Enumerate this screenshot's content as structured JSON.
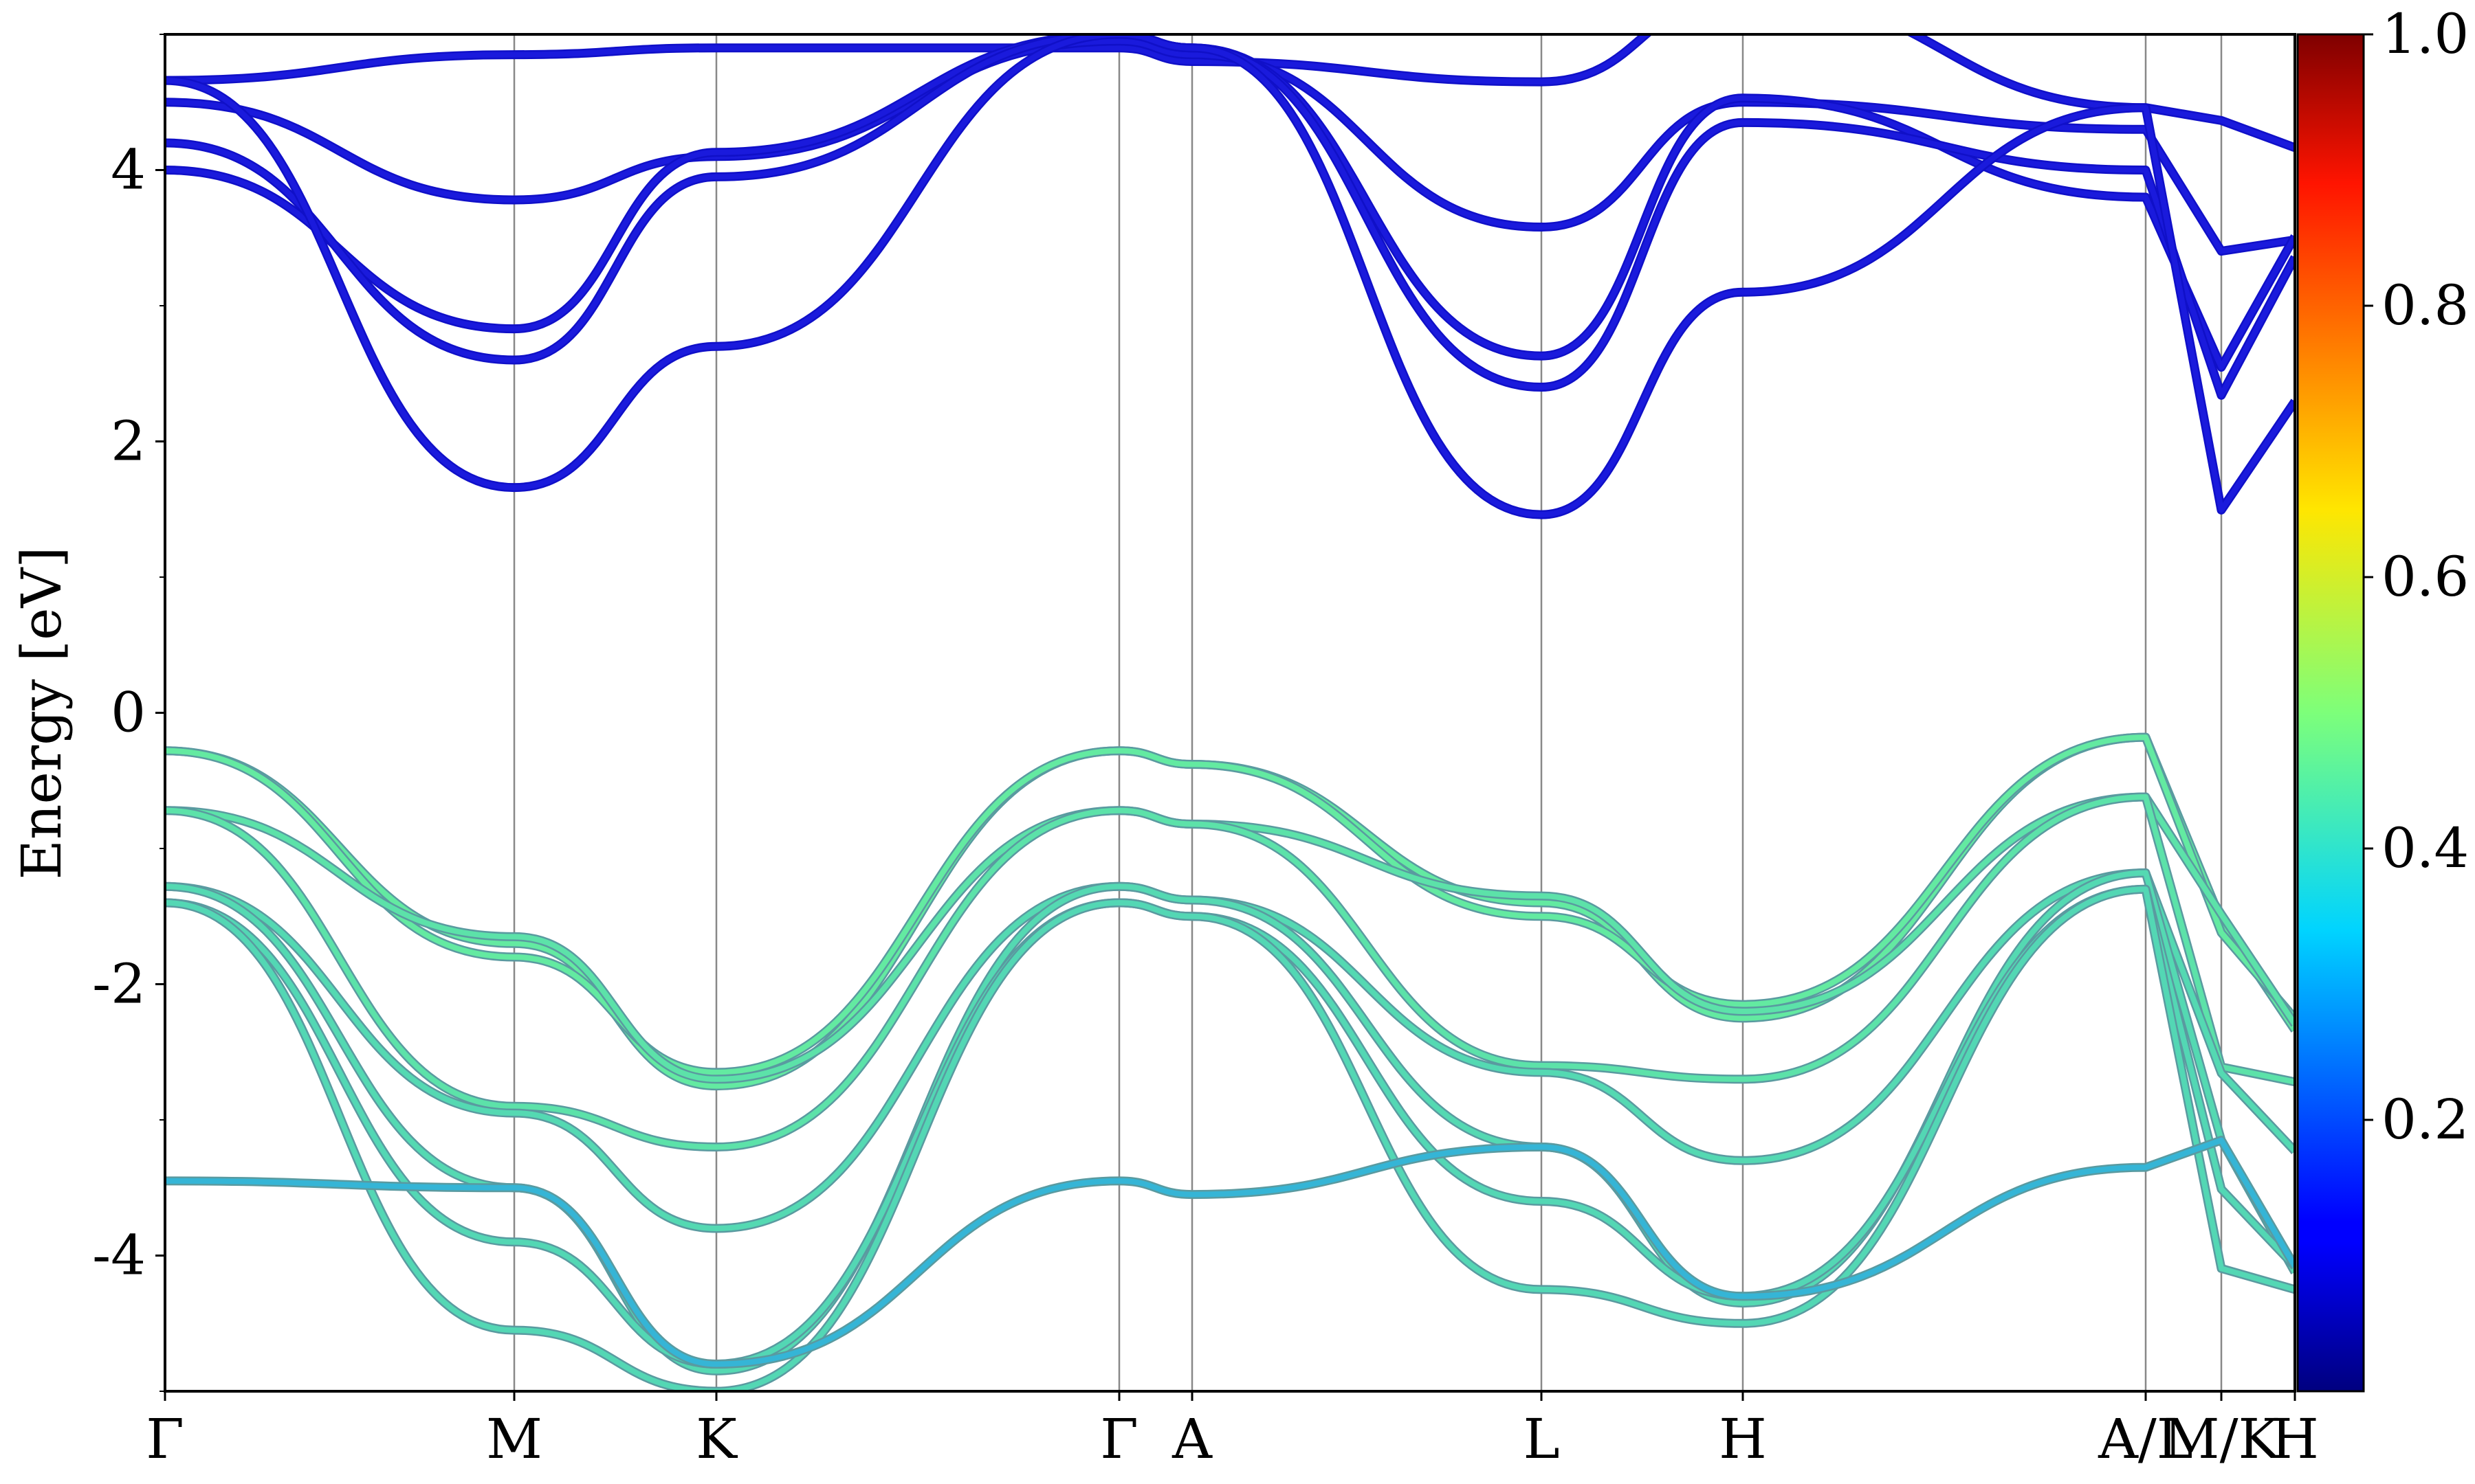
{
  "chart_data": {
    "type": "line",
    "ylabel": "Energy [eV]",
    "ylim": [
      -5,
      5
    ],
    "y_ticks": [
      "-4",
      "-2",
      "0",
      "2",
      "4"
    ],
    "x_ticks": [
      "Γ",
      "M",
      "K",
      "Γ",
      "A",
      "L",
      "H",
      "A/L",
      "M/K",
      "H"
    ],
    "colorbar": {
      "colormap": "jet",
      "range": [
        0,
        1
      ],
      "tick_labels": [
        "0.2",
        "0.4",
        "0.6",
        "0.8",
        "1.0"
      ]
    },
    "conduction_color": "#1a1adc",
    "series": [
      {
        "values": [
          4.66,
          4.85,
          4.9,
          4.9
        ]
      },
      {
        "values": [
          4.5,
          3.78,
          4.1,
          4.95
        ]
      },
      {
        "values": [
          4.0,
          2.83,
          4.13,
          5.0
        ]
      },
      {
        "values": [
          4.2,
          2.6,
          3.95,
          5.0
        ]
      },
      {
        "values": [
          4.66,
          1.66,
          2.7,
          5.0
        ]
      },
      {
        "values": [
          -0.28,
          -1.7,
          -2.75,
          -0.28
        ]
      },
      {
        "values": [
          -0.28,
          -1.8,
          -2.65,
          -0.28
        ]
      },
      {
        "values": [
          -0.72,
          -1.65,
          -2.7,
          -0.72
        ]
      },
      {
        "values": [
          -0.72,
          -2.9,
          -3.2,
          -0.72
        ]
      },
      {
        "values": [
          -1.28,
          -2.95,
          -3.8,
          -1.28
        ]
      },
      {
        "values": [
          -1.28,
          -3.5,
          -4.85,
          -1.28
        ]
      },
      {
        "values": [
          -1.4,
          -3.9,
          -4.8,
          -1.4
        ]
      },
      {
        "values": [
          -1.4,
          -4.55,
          -5.0,
          -1.4
        ]
      },
      {
        "values": [
          -3.45,
          -3.5,
          -4.8,
          -3.45
        ]
      }
    ]
  }
}
